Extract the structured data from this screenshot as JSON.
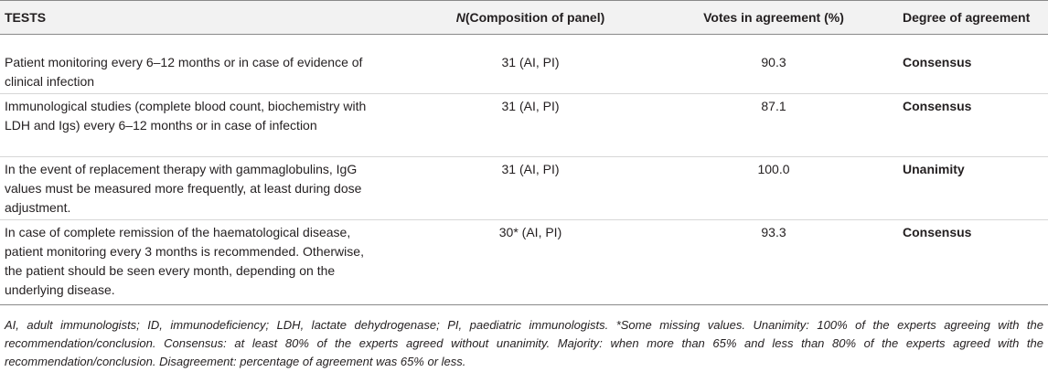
{
  "table": {
    "headers": {
      "tests": "TESTS",
      "n_italic": "N",
      "n_rest": "(Composition of panel)",
      "votes": "Votes in agreement (%)",
      "degree": "Degree of agreement"
    },
    "rows": [
      {
        "test": "Patient monitoring every 6–12 months or in case of evidence of clinical infection",
        "n": "31 (AI, PI)",
        "votes": "90.3",
        "degree": "Consensus"
      },
      {
        "test": "Immunological studies (complete blood count, biochemistry with LDH and Igs) every 6–12 months or in case of infection",
        "n": "31 (AI, PI)",
        "votes": "87.1",
        "degree": "Consensus"
      },
      {
        "test": "In the event of replacement therapy with gammaglobulins, IgG values must be measured more frequently, at least during dose adjustment.",
        "n": "31 (AI, PI)",
        "votes": "100.0",
        "degree": "Unanimity"
      },
      {
        "test": "In case of complete remission of the haematological disease, patient monitoring every 3 months is recommended. Otherwise, the patient should be seen every month, depending on the underlying disease.",
        "n": "30* (AI, PI)",
        "votes": "93.3",
        "degree": "Consensus"
      }
    ]
  },
  "footnote": "AI, adult immunologists; ID, immunodeficiency; LDH, lactate dehydrogenase; PI, paediatric immunologists. *Some missing values. Unanimity: 100% of the experts agreeing with the recommendation/conclusion. Consensus: at least 80% of the experts agreed without unanimity. Majority: when more than 65% and less than 80% of the experts agreed with the recommendation/conclusion. Disagreement: percentage of agreement was 65% or less."
}
